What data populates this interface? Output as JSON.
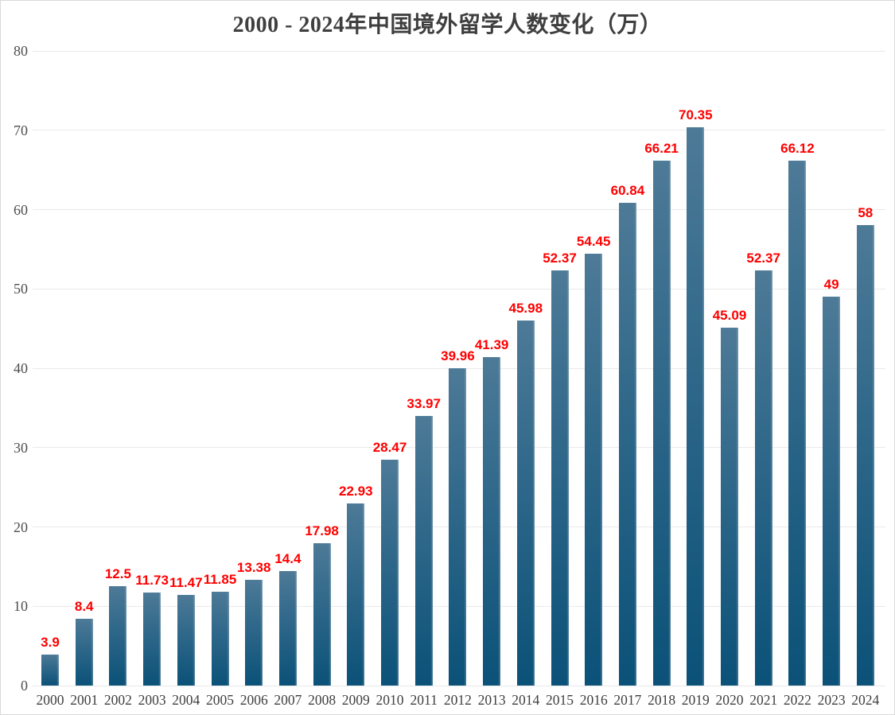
{
  "chart_data": {
    "type": "bar",
    "title": "2000 - 2024年中国境外留学人数变化（万）",
    "categories": [
      "2000",
      "2001",
      "2002",
      "2003",
      "2004",
      "2005",
      "2006",
      "2007",
      "2008",
      "2009",
      "2010",
      "2011",
      "2012",
      "2013",
      "2014",
      "2015",
      "2016",
      "2017",
      "2018",
      "2019",
      "2020",
      "2021",
      "2022",
      "2023",
      "2024"
    ],
    "values": [
      3.9,
      8.4,
      12.5,
      11.73,
      11.47,
      11.85,
      13.38,
      14.4,
      17.98,
      22.93,
      28.47,
      33.97,
      39.96,
      41.39,
      45.98,
      52.37,
      54.45,
      60.84,
      66.21,
      70.35,
      45.09,
      52.37,
      66.12,
      49,
      58
    ],
    "value_labels": [
      "3.9",
      "8.4",
      "12.5",
      "11.73",
      "11.47",
      "11.85",
      "13.38",
      "14.4",
      "17.98",
      "22.93",
      "28.47",
      "33.97",
      "39.96",
      "41.39",
      "45.98",
      "52.37",
      "54.45",
      "60.84",
      "66.21",
      "70.35",
      "45.09",
      "52.37",
      "66.12",
      "49",
      "58"
    ],
    "xlabel": "",
    "ylabel": "",
    "ylim": [
      0,
      80
    ],
    "y_ticks": [
      0,
      10,
      20,
      30,
      40,
      50,
      60,
      70,
      80
    ],
    "grid": true,
    "legend": false,
    "bar_color_top": "#4d7a97",
    "bar_color_bottom": "#0b5178",
    "value_label_color": "#fe0000"
  }
}
